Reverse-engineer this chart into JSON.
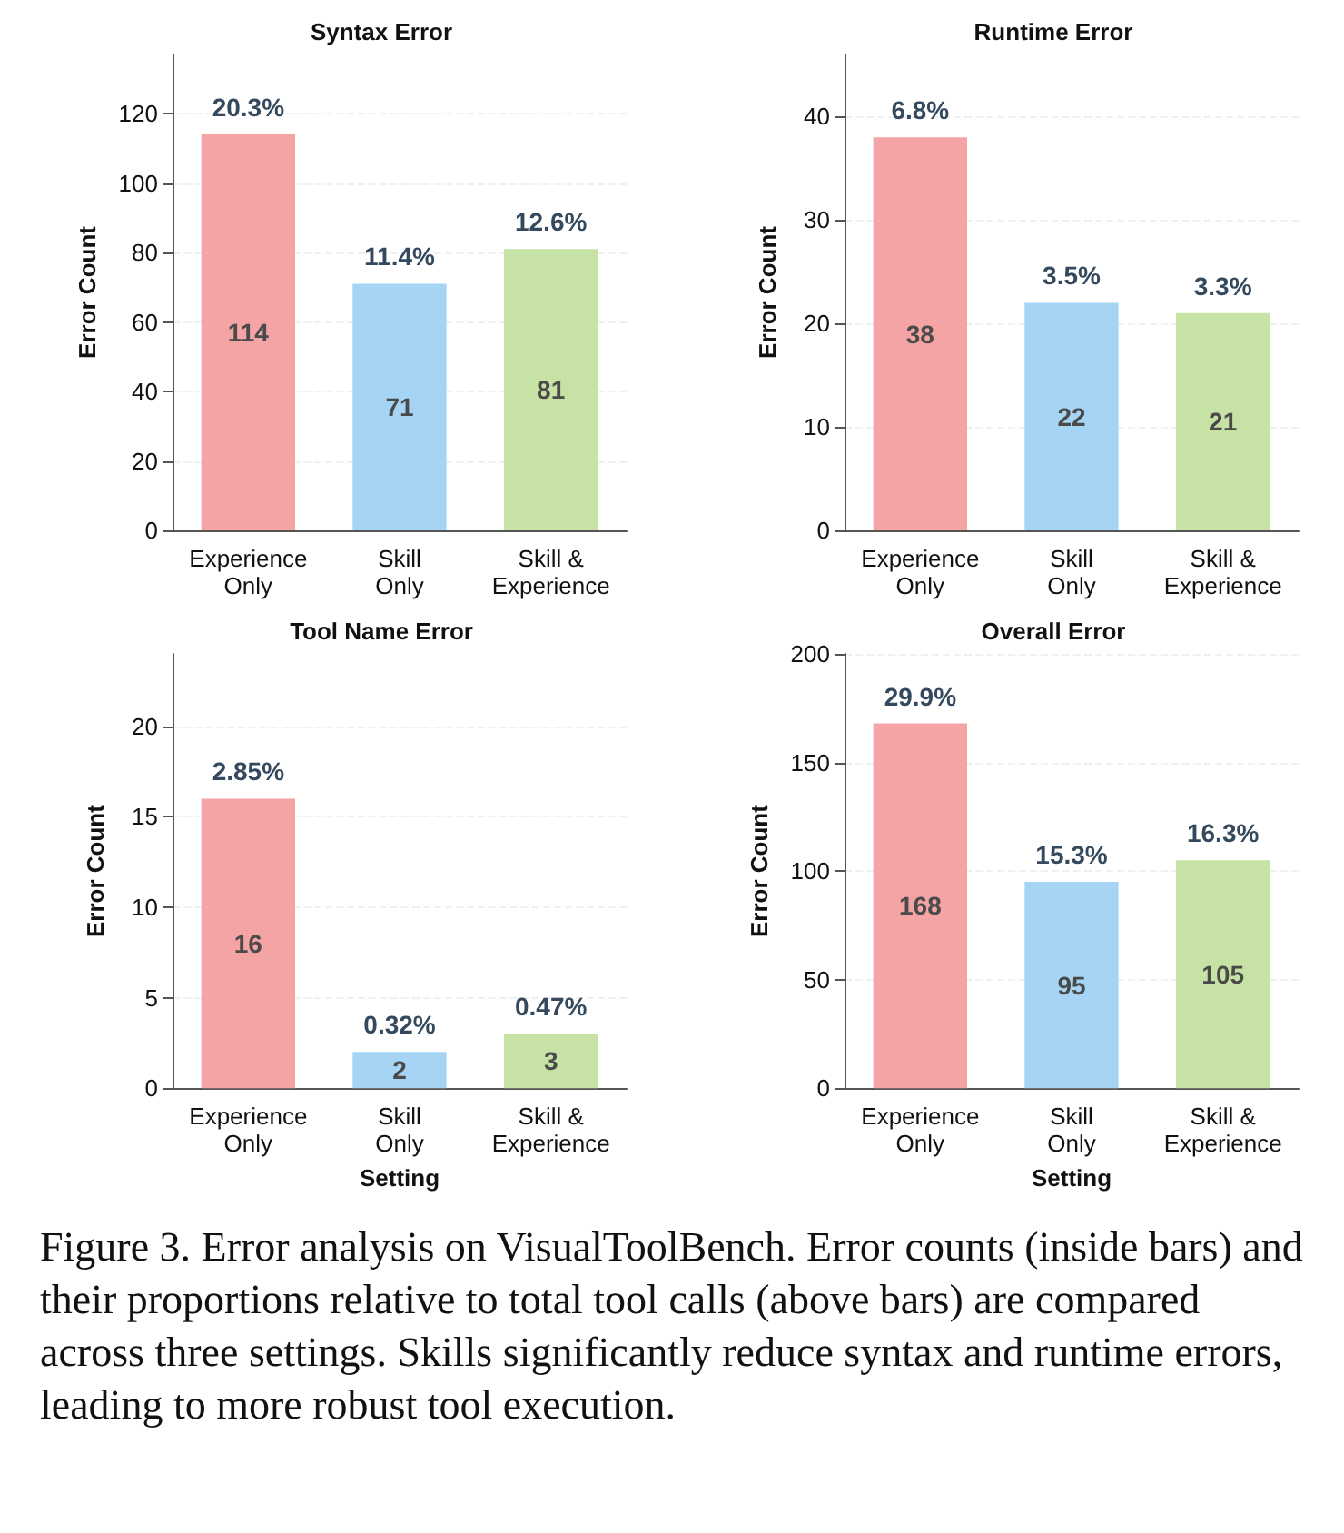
{
  "chart_data": [
    {
      "type": "bar",
      "title": "Syntax Error",
      "ylabel": "Error Count",
      "categories": [
        "Experience Only",
        "Skill Only",
        "Skill & Experience"
      ],
      "values": [
        114,
        71,
        81
      ],
      "colors": [
        "#f4a4a4",
        "#a6d4f5",
        "#c6e2a4"
      ],
      "data_labels": true,
      "ylim": [
        0,
        137
      ],
      "yticks": [
        0,
        20,
        40,
        60,
        80,
        100,
        120
      ],
      "grid": "y",
      "annotations": [
        {
          "text": "20.3%",
          "x": "Experience Only",
          "y": 114
        },
        {
          "text": "11.4%",
          "x": "Skill Only",
          "y": 71
        },
        {
          "text": "12.6%",
          "x": "Skill & Experience",
          "y": 81
        }
      ]
    },
    {
      "type": "bar",
      "title": "Runtime Error",
      "ylabel": "Error Count",
      "categories": [
        "Experience Only",
        "Skill Only",
        "Skill & Experience"
      ],
      "values": [
        38,
        22,
        21
      ],
      "colors": [
        "#f4a4a4",
        "#a6d4f5",
        "#c6e2a4"
      ],
      "data_labels": true,
      "ylim": [
        0,
        46
      ],
      "yticks": [
        0,
        10,
        20,
        30,
        40
      ],
      "grid": "y",
      "annotations": [
        {
          "text": "6.8%",
          "x": "Experience Only",
          "y": 38
        },
        {
          "text": "3.5%",
          "x": "Skill Only",
          "y": 22
        },
        {
          "text": "3.3%",
          "x": "Skill & Experience",
          "y": 21
        }
      ]
    },
    {
      "type": "bar",
      "title": "Tool Name Error",
      "ylabel": "Error Count",
      "xlabel": "Setting",
      "categories": [
        "Experience Only",
        "Skill Only",
        "Skill & Experience"
      ],
      "values": [
        16,
        2,
        3
      ],
      "colors": [
        "#f4a4a4",
        "#a6d4f5",
        "#c6e2a4"
      ],
      "data_labels": true,
      "ylim": [
        0,
        24
      ],
      "yticks": [
        0,
        5,
        10,
        15,
        20
      ],
      "grid": "y",
      "annotations": [
        {
          "text": "2.85%",
          "x": "Experience Only",
          "y": 16
        },
        {
          "text": "0.32%",
          "x": "Skill Only",
          "y": 2
        },
        {
          "text": "0.47%",
          "x": "Skill & Experience",
          "y": 3
        }
      ]
    },
    {
      "type": "bar",
      "title": "Overall Error",
      "ylabel": "Error Count",
      "xlabel": "Setting",
      "categories": [
        "Experience Only",
        "Skill Only",
        "Skill & Experience"
      ],
      "values": [
        168,
        95,
        105
      ],
      "colors": [
        "#f4a4a4",
        "#a6d4f5",
        "#c6e2a4"
      ],
      "data_labels": true,
      "ylim": [
        0,
        200
      ],
      "yticks": [
        0,
        50,
        100,
        150,
        200
      ],
      "grid": "y",
      "annotations": [
        {
          "text": "29.9%",
          "x": "Experience Only",
          "y": 168
        },
        {
          "text": "15.3%",
          "x": "Skill Only",
          "y": 95
        },
        {
          "text": "16.3%",
          "x": "Skill & Experience",
          "y": 105
        },
        "Figure 3. Error analysis on VisualToolBench. Error counts (inside bars) and their proportions relative to total tool calls (above bars) are compared across three settings. Skills significantly reduce syntax and runtime errors, leading to more robust tool execution."
      ]
    }
  ]
}
